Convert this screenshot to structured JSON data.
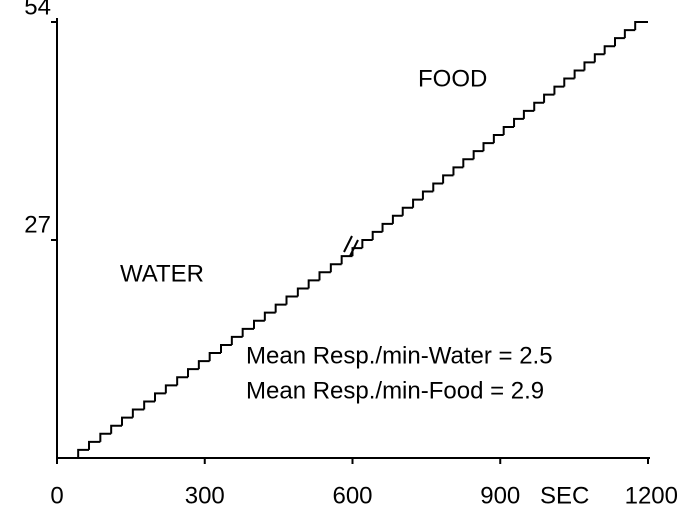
{
  "chart_data": {
    "type": "step",
    "x_label": "SEC",
    "annotations": [
      "WATER",
      "FOOD",
      "Mean Resp./min-Water = 2.5",
      "Mean Resp./min-Food = 2.9"
    ],
    "x": [
      43,
      65,
      88,
      110,
      132,
      154,
      177,
      199,
      221,
      244,
      266,
      288,
      310,
      333,
      355,
      377,
      400,
      422,
      444,
      466,
      489,
      511,
      533,
      556,
      578,
      600,
      620,
      641,
      661,
      682,
      702,
      723,
      743,
      764,
      784,
      805,
      825,
      846,
      866,
      887,
      907,
      928,
      948,
      969,
      989,
      1010,
      1030,
      1051,
      1071,
      1092,
      1112,
      1133,
      1153,
      1174
    ],
    "values": [
      1,
      2,
      3,
      4,
      5,
      6,
      7,
      8,
      9,
      10,
      11,
      12,
      13,
      14,
      15,
      16,
      17,
      18,
      19,
      20,
      21,
      22,
      23,
      24,
      25,
      26,
      27,
      28,
      29,
      30,
      31,
      32,
      33,
      34,
      35,
      36,
      37,
      38,
      39,
      40,
      41,
      42,
      43,
      44,
      45,
      46,
      47,
      48,
      49,
      50,
      51,
      52,
      53,
      54
    ],
    "color": "#000000",
    "xlim": [
      0,
      1200
    ],
    "xticks": [
      0,
      300,
      600,
      900,
      1200
    ],
    "ylim": [
      0,
      54
    ],
    "yticks": [
      27,
      54
    ]
  }
}
